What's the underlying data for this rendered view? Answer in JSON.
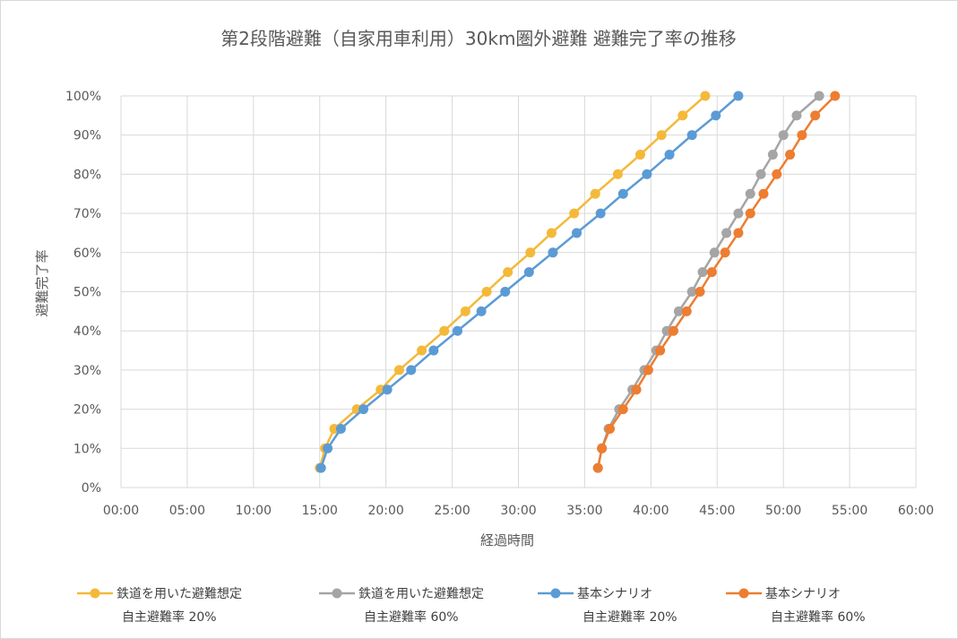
{
  "chart_data": {
    "type": "line",
    "title": "第2段階避難（自家用車利用）30km圏外避難 避難完了率の推移",
    "xlabel": "経過時間",
    "ylabel": "避難完了率",
    "x_unit": "hours:minutes",
    "xlim": [
      0,
      60
    ],
    "ylim": [
      0,
      100
    ],
    "x_tick_labels": [
      "00:00",
      "05:00",
      "10:00",
      "15:00",
      "20:00",
      "25:00",
      "30:00",
      "35:00",
      "40:00",
      "45:00",
      "50:00",
      "55:00",
      "60:00"
    ],
    "y_tick_labels": [
      "0%",
      "10%",
      "20%",
      "30%",
      "40%",
      "50%",
      "60%",
      "70%",
      "80%",
      "90%",
      "100%"
    ],
    "grid": true,
    "legend_position": "bottom",
    "y": [
      5,
      10,
      15,
      20,
      25,
      30,
      35,
      40,
      45,
      50,
      55,
      60,
      65,
      70,
      75,
      80,
      85,
      90,
      95,
      100
    ],
    "series": [
      {
        "name": "鉄道を用いた避難想定",
        "name2": "自主避難率 20%",
        "color": "#F4B93A",
        "x": [
          15.0,
          15.4,
          16.1,
          17.8,
          19.6,
          21.0,
          22.7,
          24.4,
          26.0,
          27.6,
          29.2,
          30.9,
          32.5,
          34.2,
          35.8,
          37.5,
          39.2,
          40.8,
          42.4,
          44.1
        ]
      },
      {
        "name": "鉄道を用いた避難想定",
        "name2": "自主避難率 60%",
        "color": "#A5A5A5",
        "x": [
          36.0,
          36.3,
          36.8,
          37.6,
          38.6,
          39.5,
          40.4,
          41.2,
          42.1,
          43.1,
          43.9,
          44.8,
          45.7,
          46.6,
          47.5,
          48.3,
          49.2,
          50.0,
          51.0,
          52.7
        ]
      },
      {
        "name": "基本シナリオ",
        "name2": "自主避難率 20%",
        "color": "#5B9BD5",
        "x": [
          15.1,
          15.6,
          16.6,
          18.3,
          20.1,
          21.9,
          23.6,
          25.4,
          27.2,
          29.0,
          30.8,
          32.6,
          34.4,
          36.2,
          37.9,
          39.7,
          41.4,
          43.1,
          44.9,
          46.6
        ]
      },
      {
        "name": "基本シナリオ",
        "name2": "自主避難率 60%",
        "color": "#ED7D31",
        "x": [
          36.0,
          36.3,
          36.9,
          37.9,
          38.9,
          39.8,
          40.7,
          41.7,
          42.7,
          43.7,
          44.6,
          45.6,
          46.6,
          47.5,
          48.5,
          49.5,
          50.5,
          51.4,
          52.4,
          53.9
        ]
      }
    ]
  }
}
